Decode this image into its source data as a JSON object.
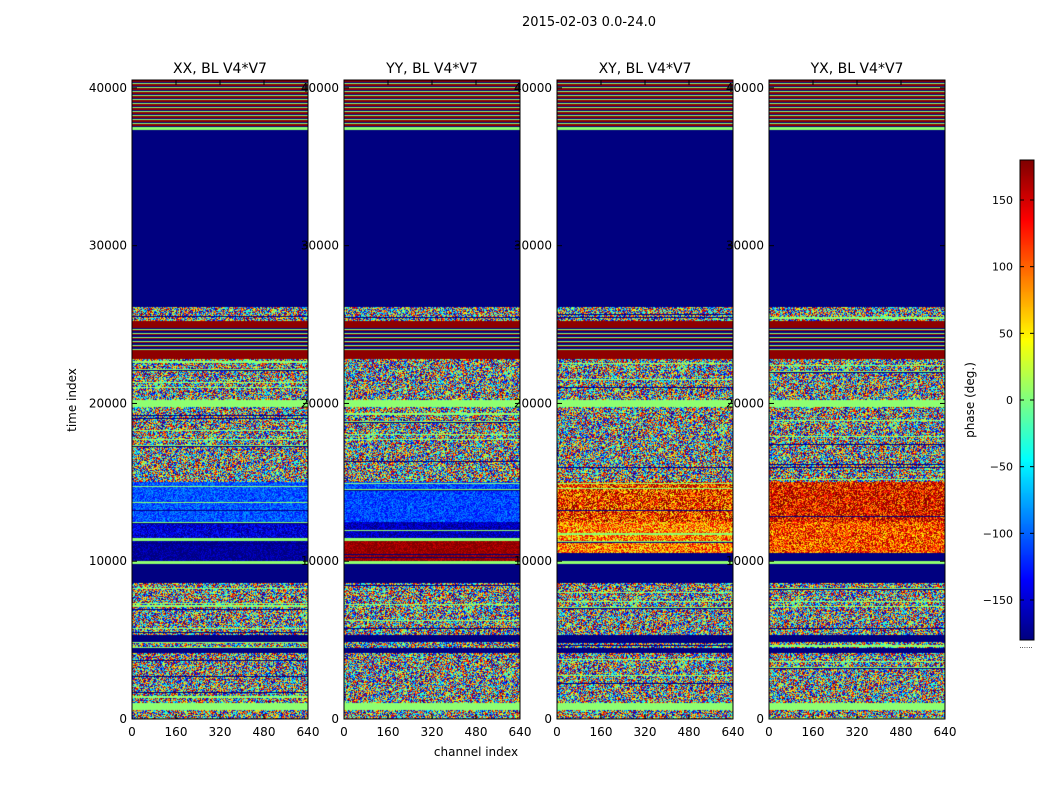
{
  "figure": {
    "title": "2015-02-03 0.0-24.0"
  },
  "colormap": "jet",
  "colorbar": {
    "label": "phase (deg.)",
    "range": [
      -180,
      180
    ],
    "ticks": [
      "150",
      "100",
      "50",
      "0",
      "−50",
      "−100",
      "−150"
    ],
    "tick_values": [
      150,
      100,
      50,
      0,
      -50,
      -100,
      -150
    ],
    "footnote": "......"
  },
  "chart_data": [
    {
      "type": "heatmap",
      "title": "XX, BL V4*V7",
      "xlabel": "",
      "ylabel": "time index",
      "xlim": [
        0,
        640
      ],
      "ylim": [
        0,
        40500
      ],
      "xticks": [
        "0",
        "160",
        "320",
        "480",
        "640"
      ],
      "yticks": [
        "0",
        "10000",
        "20000",
        "30000",
        "40000"
      ],
      "clim": [
        -180,
        180
      ],
      "bands": [
        {
          "t0": 0,
          "t1": 600,
          "kind": "noise"
        },
        {
          "t0": 600,
          "t1": 1000,
          "kind": "const",
          "value": 5
        },
        {
          "t0": 1000,
          "t1": 4200,
          "kind": "noise"
        },
        {
          "t0": 4200,
          "t1": 4500,
          "kind": "const",
          "value": -180
        },
        {
          "t0": 4500,
          "t1": 4900,
          "kind": "noise"
        },
        {
          "t0": 4900,
          "t1": 5300,
          "kind": "const",
          "value": -180
        },
        {
          "t0": 5300,
          "t1": 8600,
          "kind": "noise"
        },
        {
          "t0": 8600,
          "t1": 9800,
          "kind": "const",
          "value": -180
        },
        {
          "t0": 9800,
          "t1": 10000,
          "kind": "const",
          "value": 5
        },
        {
          "t0": 10000,
          "t1": 11300,
          "kind": "noise",
          "bias": -175,
          "spread": 30
        },
        {
          "t0": 11300,
          "t1": 11500,
          "kind": "const",
          "value": 5
        },
        {
          "t0": 11500,
          "t1": 12500,
          "kind": "noise",
          "bias": -150,
          "spread": 35
        },
        {
          "t0": 12500,
          "t1": 15000,
          "kind": "noise",
          "bias": -105,
          "spread": 30
        },
        {
          "t0": 15000,
          "t1": 19800,
          "kind": "noise"
        },
        {
          "t0": 19800,
          "t1": 20200,
          "kind": "const",
          "value": 5
        },
        {
          "t0": 20200,
          "t1": 22800,
          "kind": "noise"
        },
        {
          "t0": 22800,
          "t1": 23300,
          "kind": "const",
          "value": 175
        },
        {
          "t0": 23300,
          "t1": 24800,
          "kind": "stripes"
        },
        {
          "t0": 24800,
          "t1": 25200,
          "kind": "const",
          "value": 175
        },
        {
          "t0": 25200,
          "t1": 26100,
          "kind": "noise"
        },
        {
          "t0": 26100,
          "t1": 37300,
          "kind": "const",
          "value": -180
        },
        {
          "t0": 37300,
          "t1": 37500,
          "kind": "const",
          "value": 5
        },
        {
          "t0": 37500,
          "t1": 40500,
          "kind": "stripes_hi"
        }
      ]
    },
    {
      "type": "heatmap",
      "title": "YY, BL V4*V7",
      "xlabel": "channel index",
      "ylabel": "",
      "xlim": [
        0,
        640
      ],
      "ylim": [
        0,
        40500
      ],
      "xticks": [
        "0",
        "160",
        "320",
        "480",
        "640"
      ],
      "yticks": [
        "0",
        "10000",
        "20000",
        "30000",
        "40000"
      ],
      "clim": [
        -180,
        180
      ],
      "bands": [
        {
          "t0": 0,
          "t1": 600,
          "kind": "noise"
        },
        {
          "t0": 600,
          "t1": 1000,
          "kind": "const",
          "value": 5
        },
        {
          "t0": 1000,
          "t1": 4200,
          "kind": "noise"
        },
        {
          "t0": 4200,
          "t1": 4500,
          "kind": "const",
          "value": -180
        },
        {
          "t0": 4500,
          "t1": 4900,
          "kind": "noise"
        },
        {
          "t0": 4900,
          "t1": 5300,
          "kind": "const",
          "value": -180
        },
        {
          "t0": 5300,
          "t1": 8600,
          "kind": "noise"
        },
        {
          "t0": 8600,
          "t1": 9800,
          "kind": "const",
          "value": -180
        },
        {
          "t0": 9800,
          "t1": 10000,
          "kind": "const",
          "value": 5
        },
        {
          "t0": 10000,
          "t1": 11300,
          "kind": "noise",
          "bias": 175,
          "spread": 25
        },
        {
          "t0": 11300,
          "t1": 11500,
          "kind": "const",
          "value": 5
        },
        {
          "t0": 11500,
          "t1": 12500,
          "kind": "noise",
          "bias": -160,
          "spread": 30
        },
        {
          "t0": 12500,
          "t1": 15000,
          "kind": "noise",
          "bias": -110,
          "spread": 30
        },
        {
          "t0": 15000,
          "t1": 19800,
          "kind": "noise"
        },
        {
          "t0": 19800,
          "t1": 20200,
          "kind": "const",
          "value": 5
        },
        {
          "t0": 20200,
          "t1": 22800,
          "kind": "noise"
        },
        {
          "t0": 22800,
          "t1": 23300,
          "kind": "const",
          "value": 175
        },
        {
          "t0": 23300,
          "t1": 24800,
          "kind": "stripes"
        },
        {
          "t0": 24800,
          "t1": 25200,
          "kind": "const",
          "value": 175
        },
        {
          "t0": 25200,
          "t1": 26100,
          "kind": "noise"
        },
        {
          "t0": 26100,
          "t1": 37300,
          "kind": "const",
          "value": -180
        },
        {
          "t0": 37300,
          "t1": 37500,
          "kind": "const",
          "value": 5
        },
        {
          "t0": 37500,
          "t1": 40500,
          "kind": "stripes_hi"
        }
      ]
    },
    {
      "type": "heatmap",
      "title": "XY, BL V4*V7",
      "xlabel": "",
      "ylabel": "",
      "xlim": [
        0,
        640
      ],
      "ylim": [
        0,
        40500
      ],
      "xticks": [
        "0",
        "160",
        "320",
        "480",
        "640"
      ],
      "yticks": [
        "0",
        "10000",
        "20000",
        "30000",
        "40000"
      ],
      "clim": [
        -180,
        180
      ],
      "bands": [
        {
          "t0": 0,
          "t1": 600,
          "kind": "noise"
        },
        {
          "t0": 600,
          "t1": 1000,
          "kind": "const",
          "value": 5
        },
        {
          "t0": 1000,
          "t1": 4200,
          "kind": "noise"
        },
        {
          "t0": 4200,
          "t1": 4500,
          "kind": "const",
          "value": -180
        },
        {
          "t0": 4500,
          "t1": 4900,
          "kind": "noise"
        },
        {
          "t0": 4900,
          "t1": 5300,
          "kind": "const",
          "value": -180
        },
        {
          "t0": 5300,
          "t1": 8600,
          "kind": "noise"
        },
        {
          "t0": 8600,
          "t1": 9800,
          "kind": "const",
          "value": -180
        },
        {
          "t0": 9800,
          "t1": 10000,
          "kind": "const",
          "value": 5
        },
        {
          "t0": 10000,
          "t1": 10500,
          "kind": "const",
          "value": -180
        },
        {
          "t0": 10500,
          "t1": 12500,
          "kind": "noise",
          "bias": 90,
          "spread": 70
        },
        {
          "t0": 12500,
          "t1": 15000,
          "kind": "noise",
          "bias": 120,
          "spread": 90
        },
        {
          "t0": 15000,
          "t1": 19800,
          "kind": "noise"
        },
        {
          "t0": 19800,
          "t1": 20200,
          "kind": "const",
          "value": 5
        },
        {
          "t0": 20200,
          "t1": 22800,
          "kind": "noise"
        },
        {
          "t0": 22800,
          "t1": 23300,
          "kind": "const",
          "value": 175
        },
        {
          "t0": 23300,
          "t1": 24800,
          "kind": "stripes"
        },
        {
          "t0": 24800,
          "t1": 25200,
          "kind": "const",
          "value": 175
        },
        {
          "t0": 25200,
          "t1": 26100,
          "kind": "noise"
        },
        {
          "t0": 26100,
          "t1": 37300,
          "kind": "const",
          "value": -180
        },
        {
          "t0": 37300,
          "t1": 37500,
          "kind": "const",
          "value": 5
        },
        {
          "t0": 37500,
          "t1": 40500,
          "kind": "stripes_hi"
        }
      ]
    },
    {
      "type": "heatmap",
      "title": "YX, BL V4*V7",
      "xlabel": "",
      "ylabel": "",
      "xlim": [
        0,
        640
      ],
      "ylim": [
        0,
        40500
      ],
      "xticks": [
        "0",
        "160",
        "320",
        "480",
        "640"
      ],
      "yticks": [
        "0",
        "10000",
        "20000",
        "30000",
        "40000"
      ],
      "clim": [
        -180,
        180
      ],
      "bands": [
        {
          "t0": 0,
          "t1": 600,
          "kind": "noise"
        },
        {
          "t0": 600,
          "t1": 1000,
          "kind": "const",
          "value": 5
        },
        {
          "t0": 1000,
          "t1": 4200,
          "kind": "noise"
        },
        {
          "t0": 4200,
          "t1": 4500,
          "kind": "const",
          "value": -180
        },
        {
          "t0": 4500,
          "t1": 4900,
          "kind": "noise"
        },
        {
          "t0": 4900,
          "t1": 5300,
          "kind": "const",
          "value": -180
        },
        {
          "t0": 5300,
          "t1": 8600,
          "kind": "noise"
        },
        {
          "t0": 8600,
          "t1": 9800,
          "kind": "const",
          "value": -180
        },
        {
          "t0": 9800,
          "t1": 10000,
          "kind": "const",
          "value": 5
        },
        {
          "t0": 10000,
          "t1": 10500,
          "kind": "const",
          "value": -180
        },
        {
          "t0": 10500,
          "t1": 12500,
          "kind": "noise",
          "bias": 110,
          "spread": 70
        },
        {
          "t0": 12500,
          "t1": 15000,
          "kind": "noise",
          "bias": 140,
          "spread": 80
        },
        {
          "t0": 15000,
          "t1": 19800,
          "kind": "noise"
        },
        {
          "t0": 19800,
          "t1": 20200,
          "kind": "const",
          "value": 5
        },
        {
          "t0": 20200,
          "t1": 22800,
          "kind": "noise"
        },
        {
          "t0": 22800,
          "t1": 23300,
          "kind": "const",
          "value": 175
        },
        {
          "t0": 23300,
          "t1": 24800,
          "kind": "stripes"
        },
        {
          "t0": 24800,
          "t1": 25200,
          "kind": "const",
          "value": 175
        },
        {
          "t0": 25200,
          "t1": 26100,
          "kind": "noise"
        },
        {
          "t0": 26100,
          "t1": 37300,
          "kind": "const",
          "value": -180
        },
        {
          "t0": 37300,
          "t1": 37500,
          "kind": "const",
          "value": 5
        },
        {
          "t0": 37500,
          "t1": 40500,
          "kind": "stripes_hi"
        }
      ]
    }
  ]
}
